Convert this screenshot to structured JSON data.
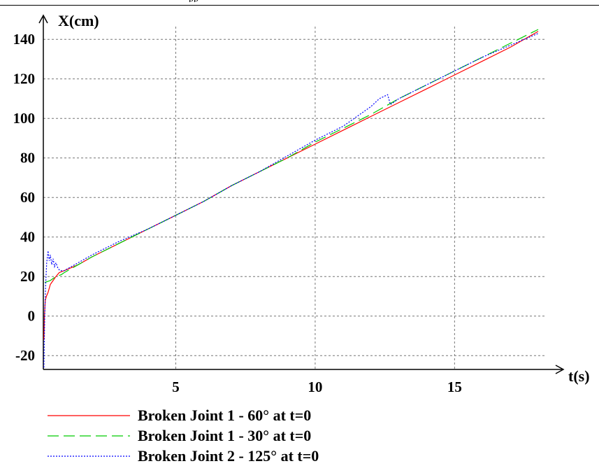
{
  "chart_data": {
    "type": "line",
    "title": "",
    "xlabel": "t(s)",
    "ylabel": "X(cm)",
    "xlim": [
      0.25,
      18.25
    ],
    "ylim": [
      -27,
      150
    ],
    "x_ticks": [
      5,
      10,
      15
    ],
    "y_ticks": [
      -20,
      0,
      20,
      40,
      60,
      80,
      100,
      120,
      140
    ],
    "grid": true,
    "legend_position": "bottom",
    "series": [
      {
        "name": "Broken Joint 1 - 60° at t=0",
        "color": "#ff0000",
        "dash": "solid",
        "x": [
          0.27,
          0.29,
          0.32,
          0.36,
          0.42,
          0.5,
          0.6,
          0.7,
          0.82,
          1.0,
          1.5,
          2.0,
          3.0,
          4.0,
          5.0,
          6.0,
          7.0,
          8.0,
          9.0,
          10.0,
          11.0,
          12.0,
          13.0,
          14.0,
          15.0,
          16.0,
          17.0,
          18.0
        ],
        "y": [
          -12,
          0,
          8,
          10,
          12,
          16,
          18,
          20,
          22,
          23,
          26,
          30,
          37,
          44,
          51,
          58,
          66,
          73,
          80,
          87,
          94,
          101,
          108,
          115,
          122,
          129,
          136,
          144
        ]
      },
      {
        "name": "Broken Joint 1 - 30° at t=0",
        "color": "#00cc00",
        "dash": "long-dash",
        "x": [
          0.3,
          0.5,
          0.7,
          0.9,
          1.0,
          1.5,
          2.0,
          3.0,
          4.0,
          5.0,
          6.0,
          7.0,
          8.0,
          9.0,
          10.0,
          11.0,
          12.0,
          13.0,
          14.0,
          15.0,
          16.0,
          17.0,
          18.0
        ],
        "y": [
          17,
          18,
          20,
          21,
          22,
          26,
          30,
          37,
          44,
          51,
          58,
          66,
          73,
          80,
          88,
          95,
          102,
          110,
          117,
          124,
          131,
          138,
          145
        ]
      },
      {
        "name": "Broken Joint 2 - 125° at t=0",
        "color": "#0000ff",
        "dash": "dotted",
        "x": [
          0.27,
          0.3,
          0.33,
          0.37,
          0.42,
          0.46,
          0.5,
          0.55,
          0.6,
          0.65,
          0.7,
          0.78,
          0.85,
          1.0,
          1.5,
          2.0,
          3.0,
          4.0,
          5.0,
          6.0,
          7.0,
          8.0,
          9.0,
          10.0,
          11.0,
          11.5,
          12.0,
          12.3,
          12.6,
          12.7,
          13.0,
          14.0,
          15.0,
          16.0,
          17.0,
          18.0
        ],
        "y": [
          -26,
          0,
          15,
          27,
          33,
          28,
          31,
          26,
          29,
          25,
          27,
          24,
          23,
          23,
          27,
          31,
          38,
          44,
          51,
          58,
          66,
          73,
          81,
          89,
          96,
          101,
          106,
          110,
          112,
          107,
          110,
          117,
          124,
          131,
          137,
          143
        ]
      }
    ]
  }
}
